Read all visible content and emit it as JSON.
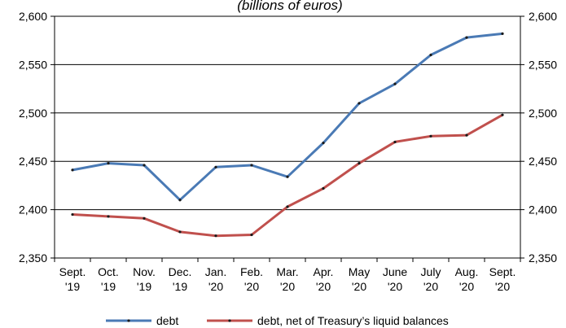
{
  "chart_data": {
    "type": "line",
    "subtitle": "(billions of euros)",
    "categories": [
      [
        "Sept.",
        "'19"
      ],
      [
        "Oct.",
        "'19"
      ],
      [
        "Nov.",
        "'19"
      ],
      [
        "Dec.",
        "'19"
      ],
      [
        "Jan.",
        "'20"
      ],
      [
        "Feb.",
        "'20"
      ],
      [
        "Mar.",
        "'20"
      ],
      [
        "Apr.",
        "'20"
      ],
      [
        "May",
        "'20"
      ],
      [
        "June",
        "'20"
      ],
      [
        "July",
        "'20"
      ],
      [
        "Aug.",
        "'20"
      ],
      [
        "Sept.",
        "'20"
      ]
    ],
    "ylim": [
      2350,
      2600
    ],
    "yticks": [
      "2,350",
      "2,400",
      "2,450",
      "2,500",
      "2,550",
      "2,600"
    ],
    "ytick_values": [
      2350,
      2400,
      2450,
      2500,
      2550,
      2600
    ],
    "grid": "horizontal",
    "legend_position": "bottom",
    "series": [
      {
        "name": "debt",
        "color": "#4a7ab5",
        "values": [
          2441,
          2448,
          2446,
          2410,
          2444,
          2446,
          2434,
          2469,
          2510,
          2530,
          2560,
          2578,
          2582
        ]
      },
      {
        "name": "debt, net of Treasury’s liquid balances",
        "color": "#c0504d",
        "values": [
          2395,
          2393,
          2391,
          2377,
          2373,
          2374,
          2403,
          2422,
          2448,
          2470,
          2476,
          2477,
          2498
        ]
      }
    ]
  }
}
